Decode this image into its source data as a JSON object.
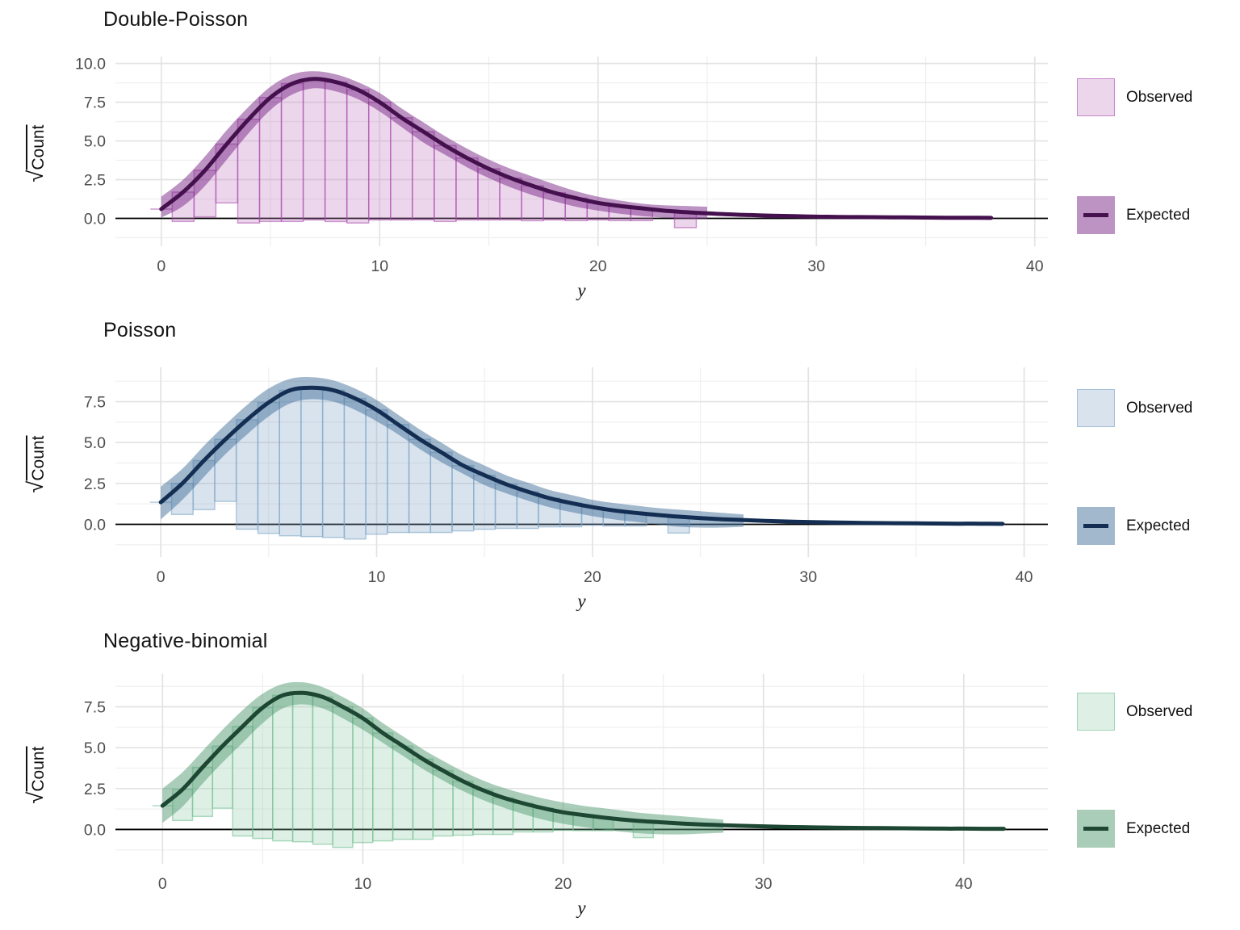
{
  "page": {
    "background": "#ffffff"
  },
  "chart_data": {
    "type": "rootogram",
    "description": "Three hanging rootograms (sqrt-scale count vs y) comparing model fits; observed bars hang from the expected curve with uncertainty ribbon.",
    "legend": {
      "observed_label": "Observed",
      "expected_label": "Expected",
      "position": "right"
    },
    "x_start": 0,
    "x_step": 1,
    "observed_sqrt": [
      0,
      1.9,
      3.0,
      3.8,
      6.7,
      8.0,
      8.9,
      9.1,
      9.0,
      8.6,
      7.6,
      6.6,
      5.7,
      4.9,
      4.0,
      3.3,
      2.7,
      2.25,
      1.75,
      1.45,
      1.1,
      0.95,
      0.8,
      0,
      1.0,
      0,
      0
    ],
    "observed_counts": [
      0,
      4,
      9,
      14,
      45,
      64,
      79,
      83,
      81,
      74,
      58,
      44,
      32,
      24,
      16,
      11,
      7,
      5,
      3,
      2,
      1,
      1,
      1,
      0,
      1,
      0,
      0
    ],
    "style": {
      "grid_major": "#e3e3e3",
      "grid_minor": "#f0f0f0",
      "axis_text": "#4d4d4d",
      "zero_line": "#000000",
      "title_color": "#141414",
      "background": "#ffffff"
    },
    "panels": [
      {
        "id": "double-poisson",
        "title": "Double-Poisson",
        "xlabel": "y",
        "ylabel_radical": "√",
        "ylabel_text": "Count",
        "xlim": [
          -2.1,
          40.6
        ],
        "ylim": [
          -1.8,
          10.45
        ],
        "x_tick_values": [
          0,
          10,
          20,
          30,
          40
        ],
        "x_tick_labels": [
          "0",
          "10",
          "20",
          "30",
          "40"
        ],
        "y_tick_values": [
          0,
          2.5,
          5,
          7.5,
          10
        ],
        "y_tick_labels": [
          "0.0",
          "2.5",
          "5.0",
          "7.5",
          "10.0"
        ],
        "x_minor": [
          5,
          15,
          25,
          35
        ],
        "y_minor": [
          -1.25,
          1.25,
          3.75,
          6.25,
          8.75
        ],
        "expected": [
          0.6,
          1.7,
          3.1,
          4.8,
          6.4,
          7.8,
          8.7,
          9.0,
          8.8,
          8.3,
          7.5,
          6.5,
          5.6,
          4.7,
          3.9,
          3.2,
          2.6,
          2.1,
          1.65,
          1.3,
          1.0,
          0.8,
          0.65,
          0.5,
          0.4,
          0.32,
          0.26,
          0.21,
          0.17,
          0.14,
          0.11,
          0.09,
          0.08,
          0.07,
          0.06,
          0.05,
          0.04,
          0.04,
          0.03
        ],
        "ribbon_upper": [
          1.4,
          2.5,
          4.0,
          5.7,
          7.2,
          8.5,
          9.3,
          9.5,
          9.3,
          8.8,
          8.1,
          7.1,
          6.2,
          5.3,
          4.5,
          3.8,
          3.2,
          2.7,
          2.2,
          1.75,
          1.4,
          1.15,
          0.95,
          0.85,
          0.8,
          0.75
        ],
        "ribbon_lower": [
          0.05,
          0.8,
          2.1,
          3.8,
          5.5,
          7.0,
          8.0,
          8.4,
          8.2,
          7.7,
          6.9,
          5.9,
          4.9,
          4.1,
          3.3,
          2.6,
          2.0,
          1.5,
          1.1,
          0.75,
          0.5,
          0.3,
          0.15,
          0.05,
          0.0,
          -0.05
        ],
        "colors": {
          "line": "#45104e",
          "ribbon": "rgba(122,40,135,0.5)",
          "bar_fill": "rgba(192,118,192,0.3)",
          "bar_stroke": "rgba(168,71,173,0.55)"
        }
      },
      {
        "id": "poisson",
        "title": "Poisson",
        "xlabel": "y",
        "ylabel_radical": "√",
        "ylabel_text": "Count",
        "xlim": [
          -2.1,
          41.1
        ],
        "ylim": [
          -2.0,
          9.6
        ],
        "x_tick_values": [
          0,
          10,
          20,
          30,
          40
        ],
        "x_tick_labels": [
          "0",
          "10",
          "20",
          "30",
          "40"
        ],
        "y_tick_values": [
          0,
          2.5,
          5,
          7.5
        ],
        "y_tick_labels": [
          "0.0",
          "2.5",
          "5.0",
          "7.5"
        ],
        "x_minor": [
          5,
          15,
          25,
          35
        ],
        "y_minor": [
          -1.25,
          1.25,
          3.75,
          6.25,
          8.75
        ],
        "expected": [
          1.35,
          2.5,
          3.9,
          5.2,
          6.4,
          7.45,
          8.2,
          8.35,
          8.2,
          7.7,
          7.0,
          6.1,
          5.2,
          4.4,
          3.6,
          3.0,
          2.45,
          2.0,
          1.6,
          1.3,
          1.05,
          0.85,
          0.7,
          0.57,
          0.47,
          0.38,
          0.31,
          0.26,
          0.21,
          0.17,
          0.14,
          0.12,
          0.1,
          0.08,
          0.07,
          0.06,
          0.05,
          0.04,
          0.04,
          0.03
        ],
        "ribbon_upper": [
          2.3,
          3.4,
          4.8,
          6.1,
          7.3,
          8.3,
          8.9,
          9.0,
          8.8,
          8.3,
          7.6,
          6.7,
          5.8,
          5.0,
          4.2,
          3.6,
          3.0,
          2.55,
          2.1,
          1.8,
          1.5,
          1.3,
          1.15,
          1.0,
          0.9,
          0.8,
          0.7,
          0.6
        ],
        "ribbon_lower": [
          0.3,
          1.5,
          2.9,
          4.3,
          5.5,
          6.6,
          7.4,
          7.65,
          7.5,
          7.0,
          6.3,
          5.5,
          4.6,
          3.8,
          3.1,
          2.4,
          1.9,
          1.45,
          1.05,
          0.75,
          0.5,
          0.3,
          0.15,
          0.0,
          -0.15,
          -0.2,
          -0.2,
          -0.15
        ],
        "colors": {
          "line": "#132e52",
          "ribbon": "rgba(69,113,155,0.5)",
          "bar_fill": "rgba(125,162,198,0.3)",
          "bar_stroke": "rgba(124,164,197,0.55)"
        }
      },
      {
        "id": "negative-binomial",
        "title": "Negative-binomial",
        "xlabel": "y",
        "ylabel_radical": "√",
        "ylabel_text": "Count",
        "xlim": [
          -2.35,
          44.2
        ],
        "ylim": [
          -2.1,
          9.5
        ],
        "x_tick_values": [
          0,
          10,
          20,
          30,
          40
        ],
        "x_tick_labels": [
          "0",
          "10",
          "20",
          "30",
          "40"
        ],
        "y_tick_values": [
          0,
          2.5,
          5,
          7.5
        ],
        "y_tick_labels": [
          "0.0",
          "2.5",
          "5.0",
          "7.5"
        ],
        "x_minor": [
          5,
          15,
          25,
          35
        ],
        "y_minor": [
          -1.25,
          1.25,
          3.75,
          6.25,
          8.75
        ],
        "expected": [
          1.45,
          2.45,
          3.8,
          5.1,
          6.3,
          7.45,
          8.2,
          8.35,
          8.1,
          7.5,
          6.8,
          5.9,
          5.1,
          4.3,
          3.6,
          2.95,
          2.4,
          1.95,
          1.6,
          1.3,
          1.05,
          0.88,
          0.73,
          0.6,
          0.5,
          0.43,
          0.36,
          0.3,
          0.26,
          0.22,
          0.19,
          0.16,
          0.14,
          0.12,
          0.1,
          0.09,
          0.08,
          0.07,
          0.06,
          0.05,
          0.05,
          0.04,
          0.04
        ],
        "ribbon_upper": [
          2.5,
          3.5,
          4.8,
          6.1,
          7.3,
          8.3,
          8.9,
          9.0,
          8.7,
          8.1,
          7.4,
          6.5,
          5.7,
          4.9,
          4.2,
          3.55,
          3.0,
          2.55,
          2.2,
          1.9,
          1.65,
          1.45,
          1.3,
          1.15,
          1.0,
          0.9,
          0.8,
          0.7,
          0.6
        ],
        "ribbon_lower": [
          0.4,
          1.4,
          2.8,
          4.1,
          5.3,
          6.5,
          7.4,
          7.65,
          7.4,
          6.8,
          6.1,
          5.3,
          4.5,
          3.7,
          3.0,
          2.35,
          1.8,
          1.35,
          0.95,
          0.6,
          0.35,
          0.15,
          0.0,
          -0.15,
          -0.25,
          -0.3,
          -0.3,
          -0.25,
          -0.2
        ],
        "colors": {
          "line": "#1d4733",
          "ribbon": "rgba(83,155,115,0.5)",
          "bar_fill": "rgba(145,205,172,0.3)",
          "bar_stroke": "rgba(110,190,140,0.55)"
        }
      }
    ]
  }
}
